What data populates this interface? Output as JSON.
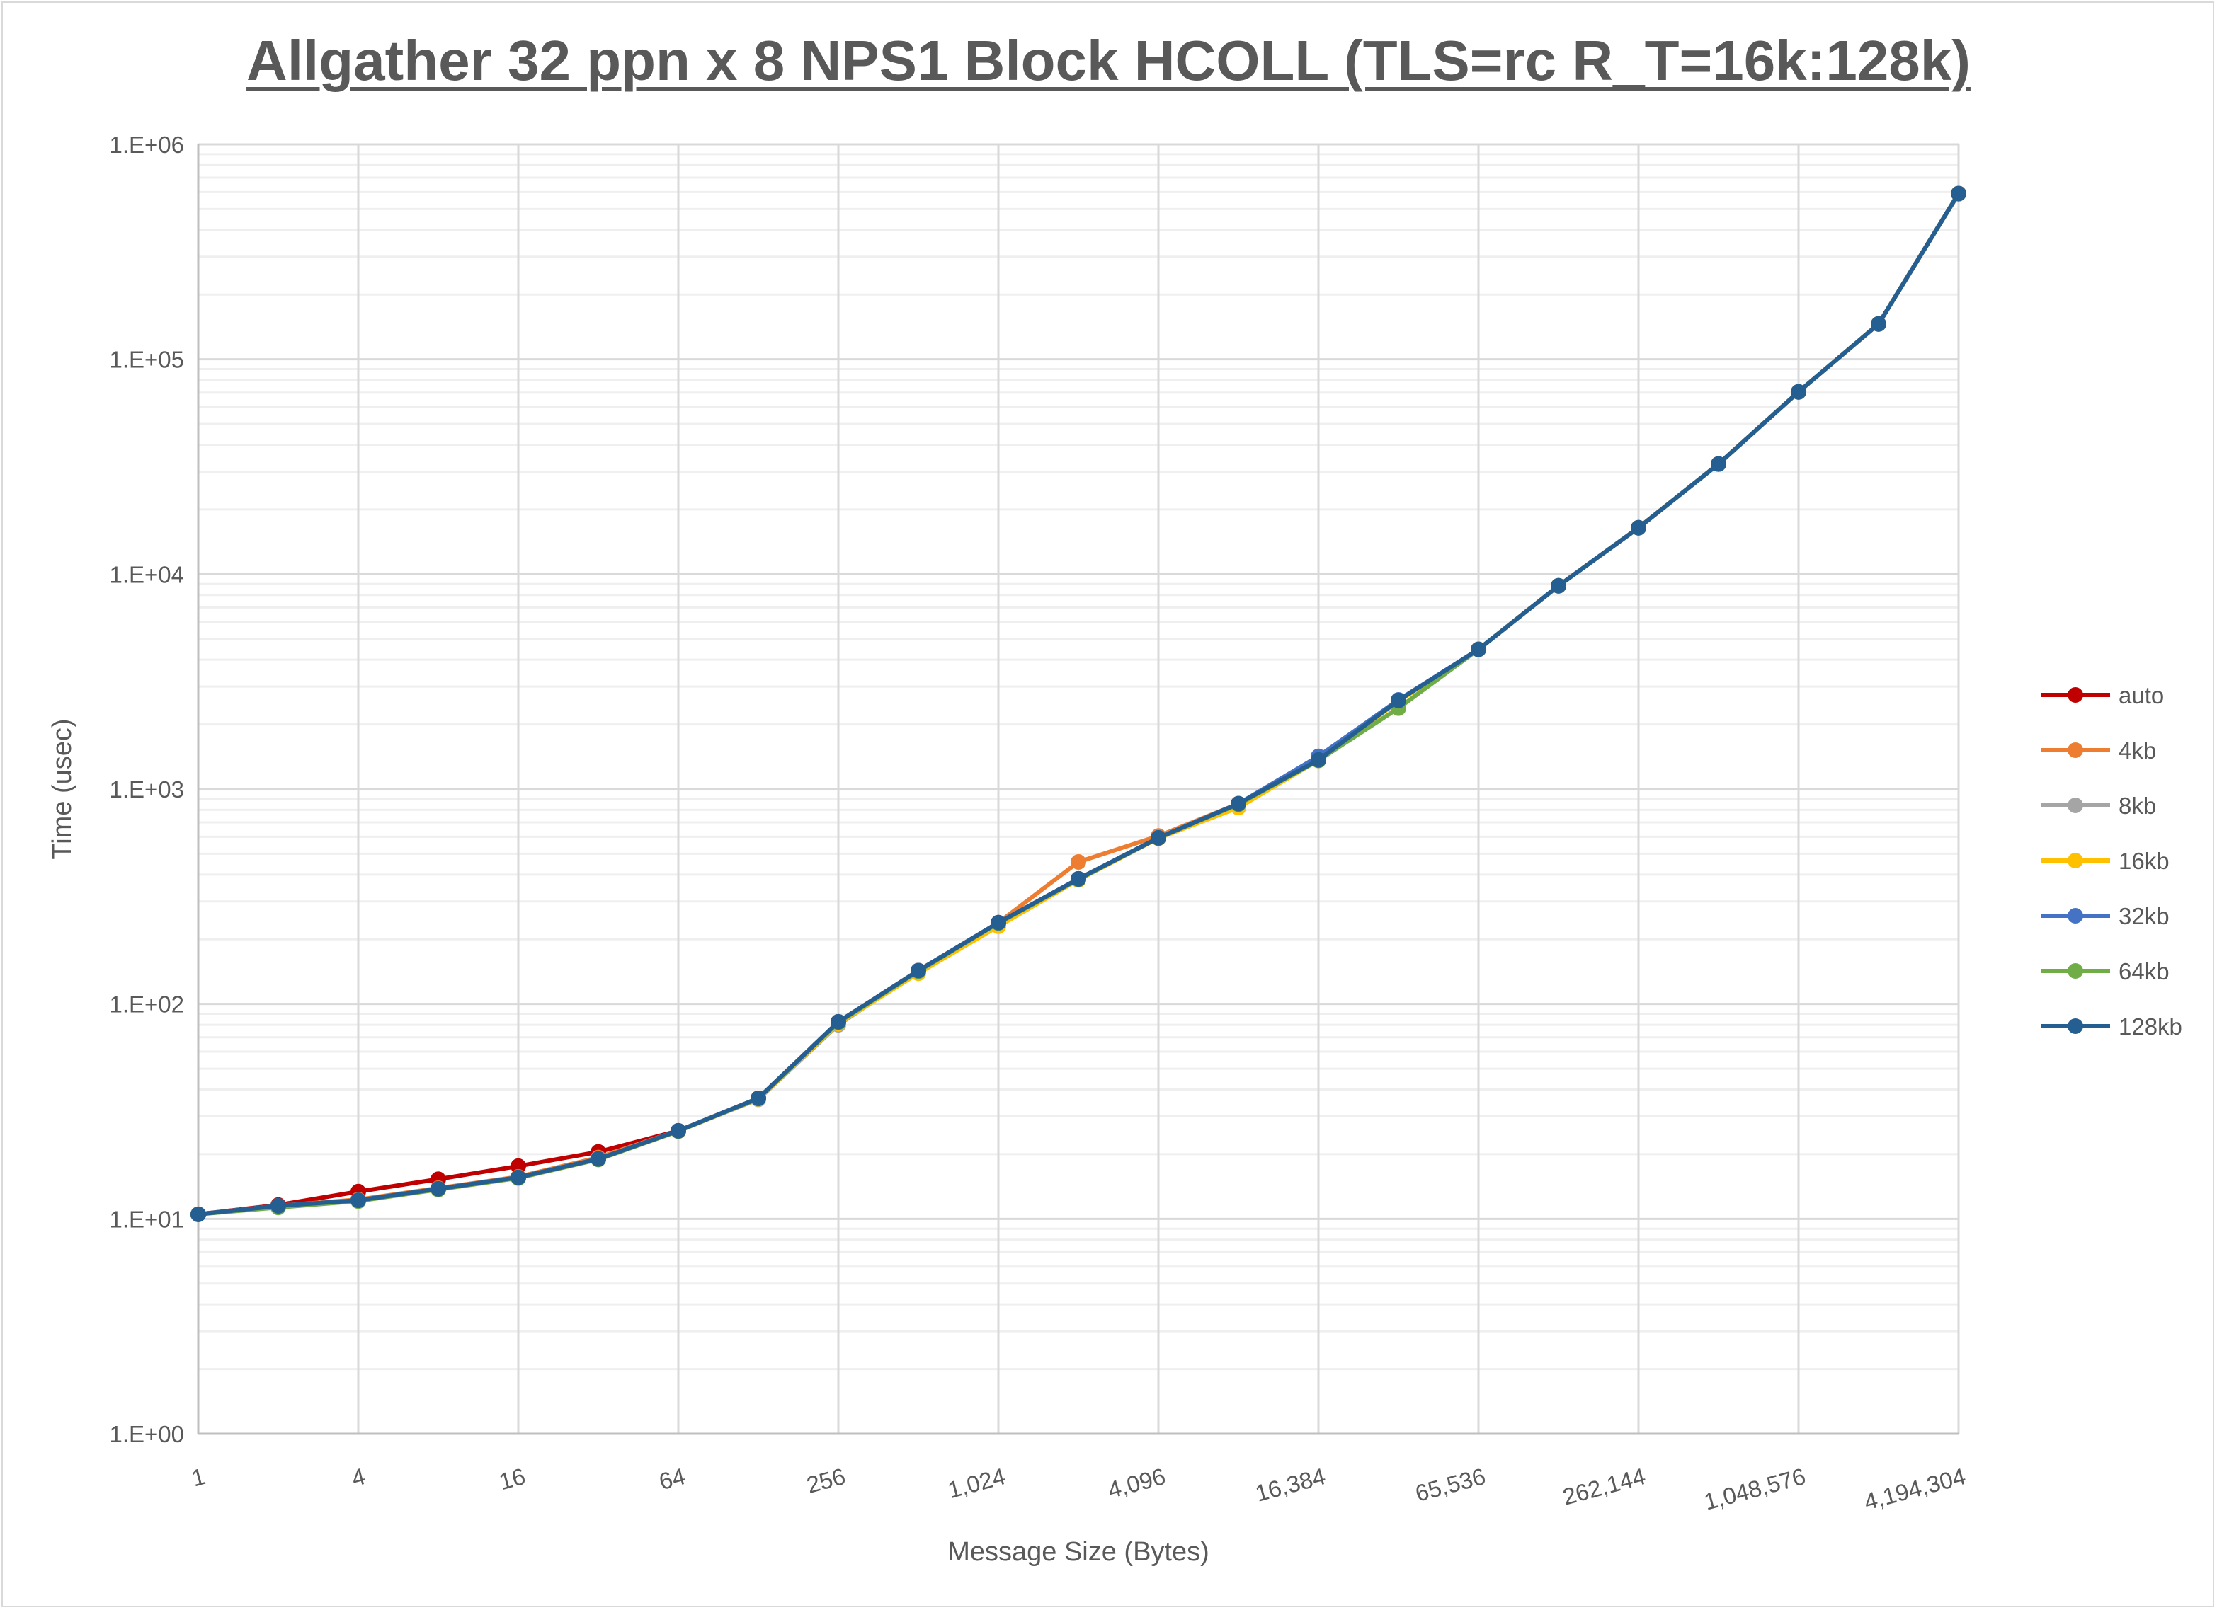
{
  "chart_data": {
    "type": "line",
    "title": "Allgather 32 ppn x 8 NPS1 Block HCOLL (TLS=rc R_T=16k:128k)",
    "xlabel": "Message Size (Bytes)",
    "ylabel": "Time (usec)",
    "xscale": "log2",
    "yscale": "log10",
    "xlim": [
      1,
      4194304
    ],
    "ylim": [
      1,
      1000000
    ],
    "grid": true,
    "legend": "right",
    "x": [
      1,
      2,
      4,
      8,
      16,
      32,
      64,
      128,
      256,
      512,
      1024,
      2048,
      4096,
      8192,
      16384,
      32768,
      65536,
      131072,
      262144,
      524288,
      1048576,
      2097152,
      4194304
    ],
    "x_tick_labels": [
      "1",
      "4",
      "16",
      "64",
      "256",
      "1,024",
      "4,096",
      "16,384",
      "65,536",
      "262,144",
      "1,048,576",
      "4,194,304"
    ],
    "y_tick_labels": [
      "1.E+00",
      "1.E+01",
      "1.E+02",
      "1.E+03",
      "1.E+04",
      "1.E+05",
      "1.E+06"
    ],
    "series": [
      {
        "name": "auto",
        "color": "#c00000",
        "values": [
          10.5,
          11.6,
          13.4,
          15.3,
          17.6,
          20.5,
          25.7,
          36.4,
          82.6,
          143,
          239,
          382,
          593,
          855,
          1367,
          2584,
          4467,
          8830,
          16440,
          32560,
          70500,
          146000,
          590000
        ]
      },
      {
        "name": "4kb",
        "color": "#ed7d31",
        "values": [
          10.5,
          11.5,
          12.3,
          13.9,
          15.7,
          19.3,
          25.7,
          36.4,
          82.6,
          143,
          239,
          458,
          605,
          855,
          1367,
          2584,
          4467,
          8830,
          16440,
          32560,
          70500,
          146000,
          590000
        ]
      },
      {
        "name": "8kb",
        "color": "#a5a5a5",
        "values": [
          10.5,
          11.5,
          12.2,
          13.8,
          15.6,
          19.0,
          25.7,
          36.0,
          80.0,
          142,
          237,
          382,
          593,
          855,
          1367,
          2584,
          4467,
          8830,
          16440,
          32560,
          70500,
          146000,
          590000
        ]
      },
      {
        "name": "16kb",
        "color": "#ffc000",
        "values": [
          10.5,
          11.4,
          12.1,
          13.7,
          15.5,
          18.9,
          25.6,
          36.2,
          81.0,
          139,
          230,
          378,
          590,
          820,
          1360,
          2560,
          4467,
          8830,
          16440,
          32560,
          70500,
          146000,
          590000
        ]
      },
      {
        "name": "32kb",
        "color": "#4472c4",
        "values": [
          10.5,
          11.5,
          12.2,
          13.8,
          15.6,
          19.0,
          25.7,
          36.4,
          82.6,
          143,
          239,
          382,
          593,
          855,
          1420,
          2600,
          4467,
          8830,
          16440,
          32560,
          70500,
          146000,
          590000
        ]
      },
      {
        "name": "64kb",
        "color": "#70ad47",
        "values": [
          10.5,
          11.3,
          12.1,
          13.7,
          15.5,
          18.9,
          25.6,
          36.3,
          82.0,
          142,
          238,
          380,
          592,
          850,
          1360,
          2380,
          4467,
          8830,
          16440,
          32560,
          70500,
          146000,
          590000
        ]
      },
      {
        "name": "128kb",
        "color": "#255e91",
        "values": [
          10.5,
          11.5,
          12.2,
          13.8,
          15.6,
          19.0,
          25.7,
          36.4,
          82.6,
          143,
          239,
          382,
          593,
          855,
          1367,
          2584,
          4467,
          8830,
          16440,
          32560,
          70500,
          146000,
          590000
        ]
      }
    ]
  }
}
